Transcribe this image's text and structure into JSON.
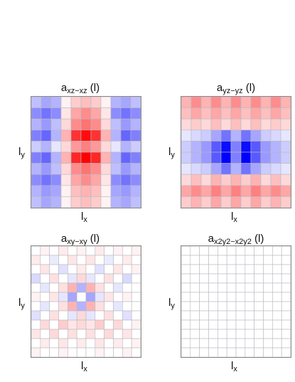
{
  "chart_data": [
    {
      "type": "heatmap",
      "title": {
        "base": "a",
        "sub": "xz−xz",
        "suffix": " (l)"
      },
      "xlabel": {
        "base": "l",
        "sub": "x"
      },
      "ylabel": {
        "base": "l",
        "sub": "y"
      },
      "grid": true,
      "colors": {
        "negative": "#0000ff",
        "positive": "#ff0000",
        "zero": "#ffffff"
      },
      "values": [
        [
          -0.25,
          -0.35,
          -0.3,
          0.05,
          0.2,
          0.25,
          0.2,
          0.05,
          -0.3,
          -0.35,
          -0.25
        ],
        [
          -0.45,
          -0.55,
          -0.45,
          0.1,
          0.35,
          0.45,
          0.35,
          0.1,
          -0.45,
          -0.55,
          -0.45
        ],
        [
          -0.3,
          -0.4,
          -0.25,
          0.15,
          0.45,
          0.55,
          0.45,
          0.15,
          -0.25,
          -0.4,
          -0.3
        ],
        [
          -0.5,
          -0.6,
          -0.3,
          0.3,
          0.8,
          0.95,
          0.8,
          0.3,
          -0.3,
          -0.6,
          -0.5
        ],
        [
          -0.2,
          -0.3,
          -0.1,
          0.15,
          0.4,
          0.5,
          0.4,
          0.15,
          -0.1,
          -0.3,
          -0.2
        ],
        [
          -0.5,
          -0.6,
          -0.3,
          0.3,
          0.85,
          1.0,
          0.85,
          0.3,
          -0.3,
          -0.6,
          -0.5
        ],
        [
          -0.3,
          -0.4,
          -0.25,
          0.15,
          0.45,
          0.55,
          0.45,
          0.15,
          -0.25,
          -0.4,
          -0.3
        ],
        [
          -0.45,
          -0.55,
          -0.45,
          0.1,
          0.35,
          0.45,
          0.35,
          0.1,
          -0.45,
          -0.55,
          -0.45
        ],
        [
          -0.3,
          -0.4,
          -0.35,
          0.05,
          0.25,
          0.3,
          0.25,
          0.05,
          -0.35,
          -0.4,
          -0.3
        ],
        [
          -0.25,
          -0.35,
          -0.3,
          0.05,
          0.2,
          0.25,
          0.2,
          0.05,
          -0.3,
          -0.35,
          -0.25
        ]
      ]
    },
    {
      "type": "heatmap",
      "title": {
        "base": "a",
        "sub": "yz−yz",
        "suffix": " (l)"
      },
      "xlabel": {
        "base": "l",
        "sub": "x"
      },
      "ylabel": {
        "base": "l",
        "sub": "y"
      },
      "grid": true,
      "colors": {
        "negative": "#0000ff",
        "positive": "#ff0000",
        "zero": "#ffffff"
      },
      "values": [
        [
          0.3,
          0.45,
          0.3,
          0.45,
          0.3,
          0.45,
          0.3,
          0.45,
          0.3,
          0.45,
          0.3
        ],
        [
          0.25,
          0.35,
          0.25,
          0.35,
          0.25,
          0.35,
          0.25,
          0.35,
          0.25,
          0.35,
          0.25
        ],
        [
          0.15,
          0.2,
          0.15,
          0.25,
          0.15,
          0.25,
          0.15,
          0.25,
          0.15,
          0.2,
          0.15
        ],
        [
          -0.1,
          -0.15,
          -0.2,
          -0.35,
          -0.55,
          -0.3,
          -0.55,
          -0.35,
          -0.2,
          -0.15,
          -0.1
        ],
        [
          -0.2,
          -0.3,
          -0.4,
          -0.65,
          -0.95,
          -0.5,
          -0.95,
          -0.65,
          -0.4,
          -0.3,
          -0.2
        ],
        [
          -0.2,
          -0.3,
          -0.4,
          -0.65,
          -1.0,
          -0.5,
          -1.0,
          -0.65,
          -0.4,
          -0.3,
          -0.2
        ],
        [
          -0.1,
          -0.15,
          -0.2,
          -0.35,
          -0.55,
          -0.3,
          -0.55,
          -0.35,
          -0.2,
          -0.15,
          -0.1
        ],
        [
          0.15,
          0.25,
          0.15,
          0.3,
          0.2,
          0.3,
          0.2,
          0.3,
          0.15,
          0.25,
          0.15
        ],
        [
          0.35,
          0.45,
          0.35,
          0.5,
          0.35,
          0.5,
          0.35,
          0.5,
          0.35,
          0.45,
          0.35
        ],
        [
          0.2,
          0.3,
          0.2,
          0.35,
          0.2,
          0.35,
          0.2,
          0.35,
          0.2,
          0.3,
          0.2
        ]
      ]
    },
    {
      "type": "heatmap",
      "title": {
        "base": "a",
        "sub": "xy−xy",
        "suffix": " (l)"
      },
      "xlabel": {
        "base": "l",
        "sub": "x"
      },
      "ylabel": {
        "base": "l",
        "sub": "y"
      },
      "grid": true,
      "colors": {
        "negative": "#0000ff",
        "positive": "#ff0000",
        "zero": "#ffffff"
      },
      "values": [
        [
          0,
          0.05,
          0,
          0.08,
          0,
          0.05,
          0,
          0.08,
          0,
          0.05,
          0,
          0.05
        ],
        [
          0.08,
          0,
          -0.08,
          0,
          0.1,
          0,
          0.1,
          0,
          -0.08,
          0,
          0.08,
          0
        ],
        [
          0,
          0.1,
          0,
          -0.12,
          0,
          0.08,
          0,
          -0.12,
          0,
          0.1,
          0,
          0.05
        ],
        [
          -0.15,
          0,
          0.12,
          0,
          -0.1,
          0.15,
          -0.1,
          0,
          0.12,
          0,
          -0.15,
          0
        ],
        [
          0,
          -0.1,
          0,
          0.12,
          0.3,
          -0.3,
          0.3,
          0.12,
          0,
          -0.1,
          0,
          0
        ],
        [
          0.05,
          0,
          0.1,
          -0.1,
          -0.35,
          0,
          -0.35,
          -0.1,
          0.1,
          0,
          0.05,
          0
        ],
        [
          0,
          -0.1,
          0,
          0.12,
          0.3,
          -0.3,
          0.3,
          0.12,
          0,
          -0.1,
          0,
          0
        ],
        [
          -0.12,
          0,
          0.12,
          0,
          -0.1,
          0.15,
          -0.1,
          0,
          0.12,
          0,
          -0.12,
          0
        ],
        [
          0,
          0.15,
          0,
          0.2,
          0.1,
          0.15,
          0.1,
          0.2,
          0,
          0.15,
          0,
          0.05
        ],
        [
          0.1,
          0,
          0.15,
          0,
          0.12,
          0,
          0.12,
          0,
          0.15,
          0,
          0.1,
          0
        ],
        [
          0,
          0.08,
          0,
          0.1,
          0,
          0.08,
          0,
          0.1,
          0,
          0.08,
          0,
          0.05
        ],
        [
          0.05,
          0,
          0,
          0.05,
          0,
          0,
          0,
          0.05,
          0,
          0,
          0.05,
          0
        ]
      ]
    },
    {
      "type": "heatmap",
      "title": {
        "base": "a",
        "sub": "x2y2−x2y2",
        "suffix": " (l)"
      },
      "xlabel": {
        "base": "l",
        "sub": "x"
      },
      "ylabel": {
        "base": "l",
        "sub": "y"
      },
      "grid": true,
      "colors": {
        "negative": "#0000ff",
        "positive": "#ff0000",
        "zero": "#ffffff"
      },
      "values": [
        [
          0,
          0,
          0,
          0,
          0,
          0,
          0,
          0,
          0,
          0,
          0,
          0
        ],
        [
          0,
          0,
          0,
          0,
          0,
          0,
          0,
          0,
          0,
          0,
          0,
          0
        ],
        [
          0,
          0,
          0,
          0,
          0,
          0,
          0,
          0,
          0,
          0,
          0,
          0
        ],
        [
          0,
          0,
          0,
          0,
          0,
          0,
          0,
          0,
          0,
          0,
          0,
          0
        ],
        [
          0,
          0,
          0,
          0,
          0,
          0,
          0,
          0,
          0,
          0,
          0,
          0
        ],
        [
          0,
          0,
          0,
          0,
          0,
          0,
          0,
          0,
          0,
          0,
          0,
          0
        ],
        [
          0,
          0,
          0,
          0,
          0,
          0,
          0,
          0,
          0,
          0,
          0,
          0
        ],
        [
          0,
          0,
          0,
          0,
          0,
          0,
          0,
          0,
          0,
          0,
          0,
          0
        ],
        [
          0,
          0,
          0,
          0,
          0,
          0,
          0,
          0,
          0,
          0,
          0,
          0
        ],
        [
          0,
          0,
          0,
          0,
          0,
          0,
          0,
          0,
          0,
          0,
          0,
          0
        ],
        [
          0,
          0,
          0,
          0,
          0,
          0,
          0,
          0,
          0,
          0,
          0,
          0
        ],
        [
          0,
          0,
          0,
          0,
          0,
          0,
          0,
          0,
          0,
          0,
          0,
          0
        ]
      ]
    }
  ]
}
